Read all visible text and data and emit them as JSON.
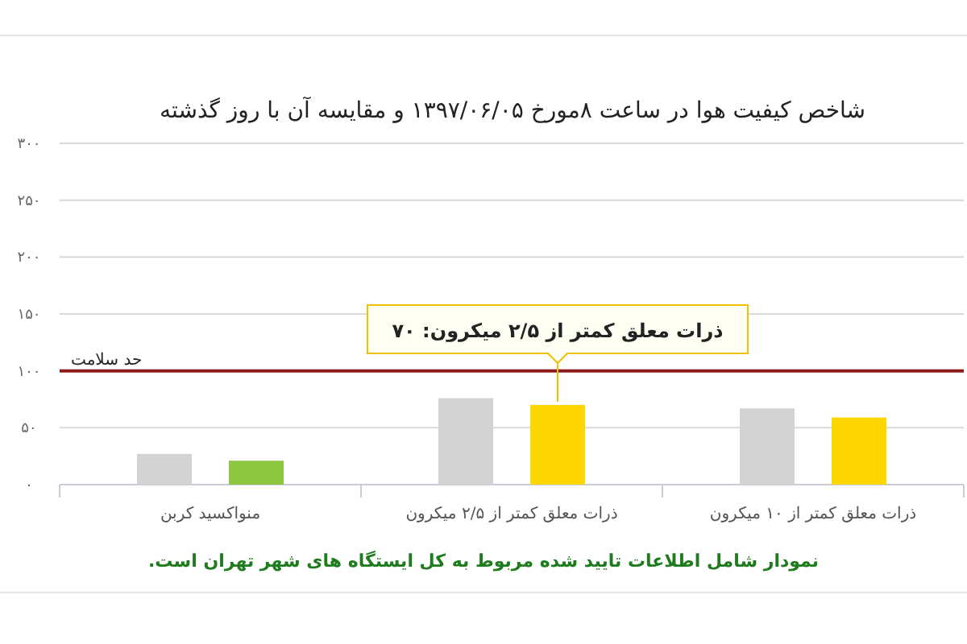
{
  "chart_data": {
    "type": "bar",
    "title": "شاخص کیفیت هوا در ساعت ۸مورخ ۱۳۹۷/۰۶/۰۵ و مقایسه آن با روز گذشته",
    "categories": [
      "منواکسید کربن",
      "ذرات معلق کمتر از ۲/۵ میکرون",
      "ذرات معلق کمتر از ۱۰ میکرون"
    ],
    "series": [
      {
        "color": "#d3d3d3",
        "values": [
          27,
          76,
          67
        ]
      },
      {
        "colors": [
          "#8dc63f",
          "#ffd700",
          "#ffd700"
        ],
        "values": [
          21,
          70,
          59
        ],
        "value_labels": [
          null,
          "ذرات معلق کمتر از ۲/۵ میکرون: ۷۰",
          null
        ]
      }
    ],
    "ylim": [
      0,
      300
    ],
    "yticks": [
      {
        "value": 0,
        "label": "۰"
      },
      {
        "value": 50,
        "label": "۵۰"
      },
      {
        "value": 100,
        "label": "۱۰۰"
      },
      {
        "value": 150,
        "label": "۱۵۰"
      },
      {
        "value": 200,
        "label": "۲۰۰"
      },
      {
        "value": 250,
        "label": "۲۵۰"
      },
      {
        "value": 300,
        "label": "۳۰۰"
      }
    ],
    "grid": "y",
    "ref_lines": [
      {
        "axis": "y",
        "value": 100,
        "label": "حد سلامت",
        "color": "#8b1a1a"
      }
    ],
    "annotations": [
      "نمودار شامل اطلاعات تایید شده مربوط به کل ایستگاه های شهر تهران است."
    ]
  }
}
